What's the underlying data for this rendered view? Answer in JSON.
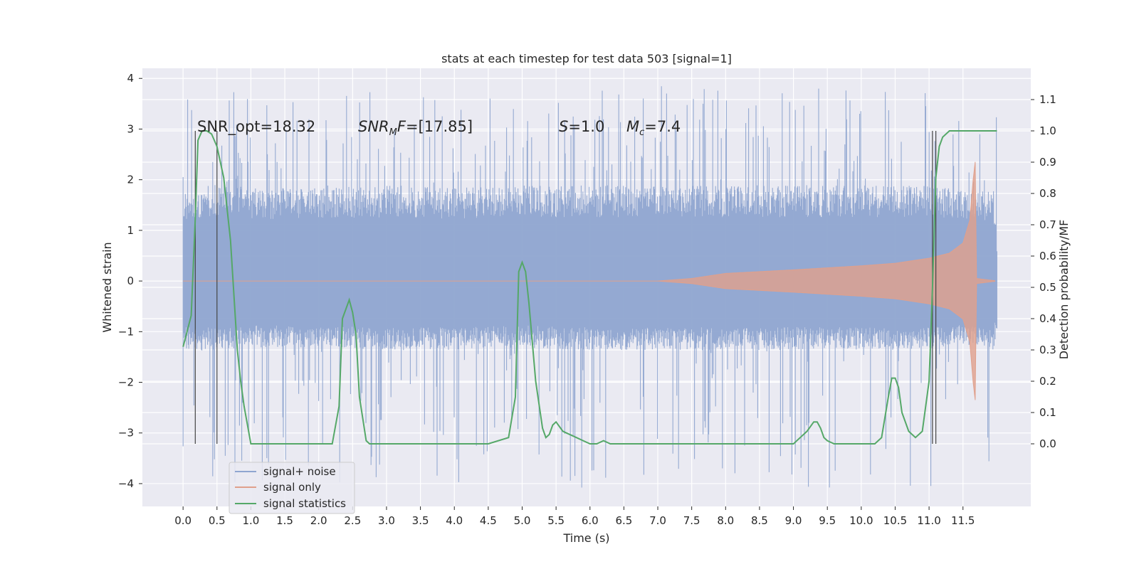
{
  "chart_data": {
    "type": "line",
    "title": "stats at each timestep for test data 503 [signal=1]",
    "xlabel": "Time (s)",
    "ylabel": "Whitened strain",
    "ylabel_right": "Detection probability/MF",
    "xlim": [
      -0.6,
      12.5
    ],
    "ylim": [
      -4.45,
      4.2
    ],
    "ylim_right": [
      -0.2,
      1.2
    ],
    "xticks": [
      0.0,
      0.5,
      1.0,
      1.5,
      2.0,
      2.5,
      3.0,
      3.5,
      4.0,
      4.5,
      5.0,
      5.5,
      6.0,
      6.5,
      7.0,
      7.5,
      8.0,
      8.5,
      9.0,
      9.5,
      10.0,
      10.5,
      11.0,
      11.5
    ],
    "xtick_labels": [
      "0.0",
      "0.5",
      "1.0",
      "1.5",
      "2.0",
      "2.5",
      "3.0",
      "3.5",
      "4.0",
      "4.5",
      "5.0",
      "5.5",
      "6.0",
      "6.5",
      "7.0",
      "7.5",
      "8.0",
      "8.5",
      "9.0",
      "9.5",
      "10.0",
      "10.5",
      "11.0",
      "11.5"
    ],
    "yticks_left": [
      -4,
      -3,
      -2,
      -1,
      0,
      1,
      2,
      3,
      4
    ],
    "ytick_labels_left": [
      "−4",
      "−3",
      "−2",
      "−1",
      "0",
      "1",
      "2",
      "3",
      "4"
    ],
    "yticks_right": [
      0.0,
      0.1,
      0.2,
      0.3,
      0.4,
      0.5,
      0.6,
      0.7,
      0.8,
      0.9,
      1.0,
      1.1
    ],
    "ytick_labels_right": [
      "0.0",
      "0.1",
      "0.2",
      "0.3",
      "0.4",
      "0.5",
      "0.6",
      "0.7",
      "0.8",
      "0.9",
      "1.0",
      "1.1"
    ],
    "grid": true,
    "legend_position": "lower-left",
    "legend": [
      {
        "label": "signal+ noise",
        "color": "#8fa5d0"
      },
      {
        "label": "signal only",
        "color": "#e0a08c"
      },
      {
        "label": "signal statistics",
        "color": "#55a868"
      }
    ],
    "annotations": [
      {
        "text": "SNR_opt=18.32",
        "x": 0.2,
        "y": 3.05
      },
      {
        "text": "SNR_MF=[17.85]",
        "x": 2.6,
        "y": 3.05
      },
      {
        "text": "S=1.0",
        "x": 5.6,
        "y": 3.05
      },
      {
        "text": "M_c=7.4",
        "x": 6.6,
        "y": 3.05
      }
    ],
    "vertical_markers_x": [
      0.18,
      0.5,
      11.05,
      11.1
    ],
    "series": [
      {
        "name": "signal+ noise",
        "color": "#8fa5d0",
        "envelope_time": [
          0.0,
          0.5,
          1.0,
          2.0,
          3.0,
          4.0,
          5.0,
          6.0,
          7.0,
          8.0,
          9.0,
          10.0,
          11.0,
          11.6,
          11.95,
          12.0
        ],
        "envelope_upper": [
          1.7,
          1.85,
          1.75,
          1.75,
          1.8,
          1.75,
          1.8,
          1.8,
          1.8,
          1.8,
          1.8,
          1.8,
          1.8,
          1.7,
          1.7,
          0.8
        ],
        "envelope_lower": [
          -1.3,
          -1.3,
          -1.25,
          -1.25,
          -1.3,
          -1.3,
          -1.25,
          -1.3,
          -1.3,
          -1.3,
          -1.3,
          -1.3,
          -1.3,
          -1.2,
          -1.3,
          -0.9
        ],
        "peak_min": -4.1,
        "peak_max": 3.85
      },
      {
        "name": "signal only",
        "color": "#e0a08c",
        "envelope_time": [
          0.0,
          7.0,
          7.5,
          8.0,
          9.0,
          10.0,
          10.5,
          11.0,
          11.3,
          11.5,
          11.6,
          11.65,
          11.68,
          11.7,
          12.0
        ],
        "envelope_amplitude": [
          0.0,
          0.0,
          0.05,
          0.15,
          0.22,
          0.3,
          0.35,
          0.45,
          0.55,
          0.75,
          1.2,
          2.0,
          2.35,
          0.05,
          0.0
        ]
      },
      {
        "name": "signal statistics",
        "color": "#55a868",
        "x": [
          0.0,
          0.12,
          0.18,
          0.22,
          0.28,
          0.35,
          0.42,
          0.5,
          0.6,
          0.7,
          0.8,
          0.85,
          0.9,
          1.0,
          1.5,
          2.0,
          2.2,
          2.3,
          2.35,
          2.45,
          2.5,
          2.55,
          2.6,
          2.7,
          2.75,
          2.8,
          3.0,
          4.0,
          4.5,
          4.8,
          4.9,
          4.95,
          5.0,
          5.05,
          5.1,
          5.2,
          5.3,
          5.35,
          5.4,
          5.45,
          5.5,
          5.6,
          5.7,
          5.8,
          5.9,
          6.0,
          6.1,
          6.2,
          6.3,
          6.5,
          7.0,
          8.0,
          8.5,
          9.0,
          9.1,
          9.2,
          9.3,
          9.35,
          9.4,
          9.45,
          9.5,
          9.6,
          9.8,
          10.2,
          10.3,
          10.4,
          10.45,
          10.5,
          10.55,
          10.6,
          10.7,
          10.8,
          10.9,
          11.0,
          11.05,
          11.1,
          11.15,
          11.2,
          11.3,
          11.4,
          12.0
        ],
        "y": [
          0.31,
          0.41,
          0.72,
          0.97,
          1.0,
          1.0,
          0.99,
          0.95,
          0.85,
          0.65,
          0.3,
          0.2,
          0.12,
          0.0,
          0.0,
          0.0,
          0.0,
          0.12,
          0.4,
          0.46,
          0.42,
          0.35,
          0.15,
          0.01,
          0.0,
          0.0,
          0.0,
          0.0,
          0.0,
          0.02,
          0.15,
          0.55,
          0.58,
          0.55,
          0.45,
          0.2,
          0.05,
          0.02,
          0.03,
          0.06,
          0.07,
          0.04,
          0.03,
          0.02,
          0.01,
          0.0,
          0.0,
          0.01,
          0.0,
          0.0,
          0.0,
          0.0,
          0.0,
          0.0,
          0.02,
          0.04,
          0.07,
          0.07,
          0.05,
          0.02,
          0.01,
          0.0,
          0.0,
          0.0,
          0.02,
          0.15,
          0.21,
          0.21,
          0.18,
          0.1,
          0.04,
          0.02,
          0.04,
          0.2,
          0.5,
          0.85,
          0.95,
          0.98,
          1.0,
          1.0,
          1.0
        ]
      }
    ]
  }
}
